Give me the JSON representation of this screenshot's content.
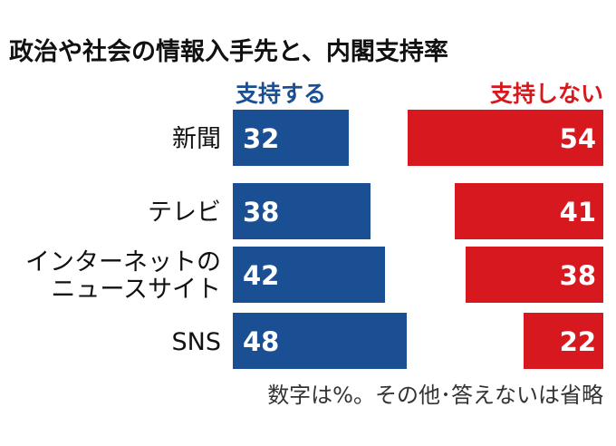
{
  "chart_data": {
    "type": "bar",
    "title": "政治や社会の情報入手先と、内閣支持率",
    "categories": [
      "新聞",
      "テレビ",
      "インターネットの\nニュースサイト",
      "SNS"
    ],
    "series": [
      {
        "name": "支持する",
        "values": [
          32,
          38,
          42,
          48
        ],
        "color": "#1b4f93"
      },
      {
        "name": "支持しない",
        "values": [
          54,
          41,
          38,
          22
        ],
        "color": "#d7191f"
      }
    ],
    "unit": "%",
    "note": "数字は%。その他･答えないは省略",
    "xlabel": "",
    "ylabel": "",
    "grid": false,
    "legend": "top"
  }
}
